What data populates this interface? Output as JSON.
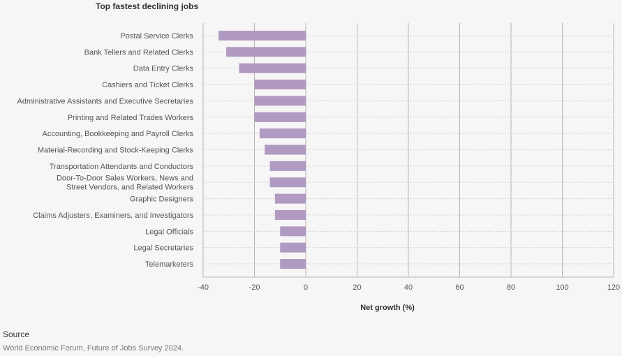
{
  "chart_data": {
    "type": "bar",
    "orientation": "horizontal",
    "title": "Top fastest declining jobs",
    "xlabel": "Net growth (%)",
    "ylabel": "",
    "xlim": [
      -40,
      120
    ],
    "xticks": [
      -40,
      -20,
      0,
      20,
      40,
      60,
      80,
      100,
      120
    ],
    "grid": true,
    "bar_color": "#b09ac1",
    "categories": [
      [
        "Postal Service Clerks"
      ],
      [
        "Bank Tellers and Related Clerks"
      ],
      [
        "Data Entry Clerks"
      ],
      [
        "Cashiers and Ticket Clerks"
      ],
      [
        "Administrative Assistants and Executive Secretaries"
      ],
      [
        "Printing and Related Trades Workers"
      ],
      [
        "Accounting, Bookkeeping and Payroll Clerks"
      ],
      [
        "Material-Recording and Stock-Keeping Clerks"
      ],
      [
        "Transportation Attendants and Conductors"
      ],
      [
        "Door-To-Door Sales Workers, News and",
        "Street Vendors, and Related Workers"
      ],
      [
        "Graphic Designers"
      ],
      [
        "Claims Adjusters, Examiners, and Investigators"
      ],
      [
        "Legal Officials"
      ],
      [
        "Legal Secretaries"
      ],
      [
        "Telemarketers"
      ]
    ],
    "values": [
      -34,
      -31,
      -26,
      -20,
      -20,
      -20,
      -18,
      -16,
      -14,
      -14,
      -12,
      -12,
      -10,
      -10,
      -10
    ]
  },
  "source": {
    "label": "Source",
    "text": "World Economic Forum, Future of Jobs Survey 2024."
  }
}
